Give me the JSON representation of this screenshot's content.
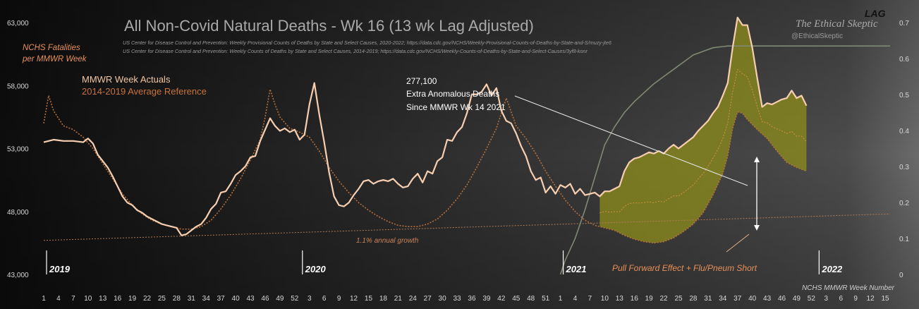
{
  "chart_data": {
    "type": "line",
    "title": "All Non-Covid Natural Deaths - Wk 16 (13 wk Lag Adjusted)",
    "sources": [
      "US Center for Disease Control and Prevention: Weekly  Provisional Counts of Deaths by State and Select Causes, 2020-2022; https://data.cdc.gov/NCHS/Weekly-Provisional-Counts-of-Deaths-by-State-and-S/muzy-jte6",
      "US Center for Disease Control and Prevention: Weekly  Counts of Deaths by State and Select Causes, 2014-2019; https://data.cdc.gov/NCHS/Weekly-Counts-of-Deaths-by-State-and-Select-Causes/3yf8-konr"
    ],
    "brand": "The Ethical Skeptic",
    "handle": "@EthicalSkeptic",
    "ylabel_lines": [
      "NCHS Fatalities",
      "per MMWR Week"
    ],
    "xlabel": "NCHS MMWR Week Number",
    "right_axis_title": "LAG",
    "legend": {
      "actual": "MMWR Week Actuals",
      "reference": "2014-2019  Average Reference"
    },
    "colors": {
      "actual": "#f7cfb0",
      "reference": "#b5703d",
      "fill": "#8a8a1e",
      "lag": "#7f8a74",
      "trend": "#b07a55",
      "title": "#a9a9a9",
      "legend_actual": "#f2c6a4",
      "legend_reference": "#c8743c",
      "annotation_orange": "#e8915a"
    },
    "ylim": [
      43000,
      63000
    ],
    "yticks": [
      43000,
      48000,
      53000,
      58000,
      63000
    ],
    "ytick_labels": [
      "43,000",
      "48,000",
      "53,000",
      "58,000",
      "63,000"
    ],
    "y2lim": [
      0,
      0.7
    ],
    "y2ticks": [
      0,
      0.1,
      0.2,
      0.3,
      0.4,
      0.5,
      0.6,
      0.7
    ],
    "y2tick_labels": [
      "0",
      "0.1",
      "0.2",
      "0.3",
      "0.4",
      "0.5",
      "0.6",
      "0.7"
    ],
    "x_week_count": 173,
    "xtick_labels": [
      "1",
      "4",
      "7",
      "10",
      "13",
      "16",
      "19",
      "22",
      "25",
      "28",
      "31",
      "34",
      "37",
      "40",
      "43",
      "46",
      "49",
      "52",
      "3",
      "6",
      "9",
      "12",
      "15",
      "18",
      "21",
      "24",
      "27",
      "30",
      "33",
      "36",
      "39",
      "42",
      "45",
      "48",
      "51",
      "1",
      "4",
      "7",
      "10",
      "13",
      "16",
      "19",
      "22",
      "25",
      "28",
      "31",
      "34",
      "37",
      "40",
      "43",
      "46",
      "49",
      "52",
      "3",
      "6",
      "9",
      "12",
      "15"
    ],
    "year_markers": [
      {
        "label": "2019",
        "index": 0
      },
      {
        "label": "2020",
        "index": 52
      },
      {
        "label": "2021",
        "index": 105
      },
      {
        "label": "2022",
        "index": 157
      }
    ],
    "actual_knots": [
      [
        0,
        53500
      ],
      [
        2,
        53700
      ],
      [
        4,
        53600
      ],
      [
        6,
        53600
      ],
      [
        8,
        53500
      ],
      [
        9,
        53800
      ],
      [
        10,
        53400
      ],
      [
        11,
        52500
      ],
      [
        12,
        52000
      ],
      [
        13,
        51500
      ],
      [
        14,
        50800
      ],
      [
        15,
        50000
      ],
      [
        16,
        49200
      ],
      [
        17,
        48700
      ],
      [
        18,
        48500
      ],
      [
        19,
        48100
      ],
      [
        20,
        47900
      ],
      [
        21,
        47600
      ],
      [
        22,
        47400
      ],
      [
        23,
        47200
      ],
      [
        24,
        47000
      ],
      [
        25,
        46900
      ],
      [
        26,
        46800
      ],
      [
        27,
        46700
      ],
      [
        28,
        46100
      ],
      [
        29,
        46200
      ],
      [
        30,
        46500
      ],
      [
        31,
        46800
      ],
      [
        32,
        47000
      ],
      [
        33,
        47500
      ],
      [
        34,
        48200
      ],
      [
        35,
        48600
      ],
      [
        36,
        49500
      ],
      [
        37,
        49600
      ],
      [
        38,
        50200
      ],
      [
        39,
        50900
      ],
      [
        40,
        51200
      ],
      [
        41,
        51600
      ],
      [
        42,
        52300
      ],
      [
        43,
        52400
      ],
      [
        44,
        53600
      ],
      [
        45,
        54500
      ],
      [
        46,
        55400
      ],
      [
        47,
        54800
      ],
      [
        48,
        54400
      ],
      [
        49,
        54600
      ],
      [
        50,
        54300
      ],
      [
        51,
        54500
      ],
      [
        52,
        53700
      ],
      [
        53,
        54100
      ],
      [
        54,
        56500
      ],
      [
        55,
        58200
      ],
      [
        56,
        55700
      ],
      [
        57,
        53500
      ],
      [
        58,
        51100
      ],
      [
        59,
        49200
      ],
      [
        60,
        48500
      ],
      [
        61,
        48400
      ],
      [
        62,
        48700
      ],
      [
        63,
        49300
      ],
      [
        64,
        49800
      ],
      [
        65,
        50400
      ],
      [
        66,
        50500
      ],
      [
        67,
        50200
      ],
      [
        68,
        50400
      ],
      [
        69,
        50500
      ],
      [
        70,
        50400
      ],
      [
        71,
        50600
      ],
      [
        72,
        50200
      ],
      [
        73,
        49900
      ],
      [
        74,
        50000
      ],
      [
        75,
        50600
      ],
      [
        76,
        51000
      ],
      [
        77,
        50300
      ],
      [
        78,
        51200
      ],
      [
        79,
        51000
      ],
      [
        80,
        52000
      ],
      [
        81,
        52300
      ],
      [
        82,
        53700
      ],
      [
        83,
        53600
      ],
      [
        84,
        54300
      ],
      [
        85,
        54700
      ],
      [
        86,
        55800
      ],
      [
        87,
        57300
      ],
      [
        88,
        57300
      ],
      [
        89,
        57500
      ],
      [
        90,
        58100
      ],
      [
        91,
        57200
      ],
      [
        92,
        57800
      ],
      [
        93,
        56000
      ],
      [
        94,
        55200
      ],
      [
        95,
        55000
      ],
      [
        96,
        54200
      ],
      [
        97,
        53200
      ],
      [
        98,
        52400
      ],
      [
        99,
        51200
      ],
      [
        100,
        50500
      ],
      [
        101,
        50700
      ],
      [
        102,
        49500
      ],
      [
        103,
        50000
      ],
      [
        104,
        49400
      ],
      [
        105,
        50100
      ],
      [
        106,
        49900
      ],
      [
        107,
        50200
      ],
      [
        108,
        49400
      ],
      [
        109,
        49800
      ],
      [
        110,
        49300
      ],
      [
        111,
        49400
      ],
      [
        112,
        49500
      ],
      [
        113,
        49200
      ],
      [
        114,
        49600
      ],
      [
        115,
        49600
      ],
      [
        116,
        49800
      ],
      [
        117,
        50000
      ],
      [
        118,
        51200
      ],
      [
        119,
        51900
      ],
      [
        120,
        52200
      ],
      [
        121,
        52300
      ],
      [
        122,
        52500
      ],
      [
        123,
        52700
      ],
      [
        124,
        52600
      ],
      [
        125,
        52800
      ],
      [
        126,
        52600
      ],
      [
        127,
        53000
      ],
      [
        128,
        53300
      ],
      [
        129,
        53000
      ],
      [
        130,
        53300
      ],
      [
        131,
        53600
      ],
      [
        132,
        53900
      ],
      [
        133,
        54400
      ],
      [
        134,
        54800
      ],
      [
        135,
        55200
      ],
      [
        136,
        55800
      ],
      [
        137,
        56300
      ],
      [
        138,
        57200
      ],
      [
        139,
        58200
      ],
      [
        140,
        61000
      ],
      [
        141,
        63400
      ],
      [
        142,
        62800
      ],
      [
        143,
        62800
      ],
      [
        144,
        61000
      ],
      [
        145,
        58600
      ],
      [
        146,
        56300
      ],
      [
        147,
        56600
      ],
      [
        148,
        56500
      ],
      [
        149,
        56700
      ],
      [
        150,
        56900
      ],
      [
        151,
        57000
      ],
      [
        152,
        57600
      ],
      [
        153,
        57000
      ],
      [
        154,
        57200
      ],
      [
        155,
        56400
      ]
    ],
    "reference_knots": [
      [
        0,
        55000
      ],
      [
        1,
        57200
      ],
      [
        2,
        56000
      ],
      [
        4,
        54800
      ],
      [
        6,
        54500
      ],
      [
        8,
        53900
      ],
      [
        10,
        53000
      ],
      [
        12,
        51800
      ],
      [
        14,
        50600
      ],
      [
        16,
        49400
      ],
      [
        18,
        48500
      ],
      [
        20,
        47800
      ],
      [
        22,
        47300
      ],
      [
        24,
        47000
      ],
      [
        26,
        46800
      ],
      [
        28,
        46600
      ],
      [
        30,
        46600
      ],
      [
        32,
        46800
      ],
      [
        34,
        47300
      ],
      [
        36,
        48200
      ],
      [
        38,
        49300
      ],
      [
        40,
        50600
      ],
      [
        42,
        52100
      ],
      [
        44,
        53700
      ],
      [
        45,
        55500
      ],
      [
        46,
        57700
      ],
      [
        47,
        56500
      ],
      [
        48,
        55500
      ],
      [
        50,
        54600
      ],
      [
        52,
        54300
      ],
      [
        54,
        53900
      ],
      [
        56,
        52800
      ],
      [
        58,
        51500
      ],
      [
        60,
        50400
      ],
      [
        62,
        49500
      ],
      [
        64,
        48700
      ],
      [
        66,
        48100
      ],
      [
        68,
        47600
      ],
      [
        70,
        47200
      ],
      [
        72,
        46900
      ],
      [
        74,
        46800
      ],
      [
        76,
        46800
      ],
      [
        78,
        47000
      ],
      [
        80,
        47400
      ],
      [
        82,
        48100
      ],
      [
        84,
        49000
      ],
      [
        86,
        50100
      ],
      [
        88,
        51500
      ],
      [
        90,
        53000
      ],
      [
        92,
        54600
      ],
      [
        93,
        55800
      ],
      [
        94,
        57000
      ],
      [
        95,
        55900
      ],
      [
        96,
        54800
      ],
      [
        98,
        53800
      ],
      [
        100,
        52600
      ],
      [
        102,
        51200
      ],
      [
        104,
        50000
      ],
      [
        106,
        48900
      ],
      [
        108,
        48000
      ],
      [
        110,
        47300
      ],
      [
        112,
        46900
      ],
      [
        114,
        46700
      ],
      [
        116,
        46500
      ],
      [
        118,
        46100
      ],
      [
        120,
        45800
      ],
      [
        122,
        45600
      ],
      [
        124,
        45500
      ],
      [
        126,
        45600
      ],
      [
        128,
        45900
      ],
      [
        130,
        46400
      ],
      [
        132,
        47000
      ],
      [
        134,
        47900
      ],
      [
        136,
        49300
      ],
      [
        138,
        51000
      ],
      [
        139,
        52400
      ],
      [
        140,
        54600
      ],
      [
        141,
        55900
      ],
      [
        142,
        55800
      ],
      [
        143,
        55300
      ],
      [
        145,
        54500
      ],
      [
        147,
        53800
      ],
      [
        149,
        52800
      ],
      [
        151,
        51900
      ],
      [
        153,
        51500
      ],
      [
        155,
        51200
      ]
    ],
    "lag_start_index": 105,
    "lag_knots": [
      [
        105,
        0
      ],
      [
        106,
        0.04
      ],
      [
        108,
        0.1
      ],
      [
        110,
        0.18
      ],
      [
        112,
        0.27
      ],
      [
        114,
        0.36
      ],
      [
        116,
        0.41
      ],
      [
        118,
        0.45
      ],
      [
        120,
        0.48
      ],
      [
        122,
        0.505
      ],
      [
        124,
        0.53
      ],
      [
        126,
        0.55
      ],
      [
        128,
        0.57
      ],
      [
        130,
        0.59
      ],
      [
        132,
        0.61
      ],
      [
        134,
        0.62
      ],
      [
        136,
        0.63
      ],
      [
        139,
        0.635
      ],
      [
        155,
        0.635
      ]
    ],
    "trend_line": [
      [
        0,
        45700
      ],
      [
        155,
        47600
      ]
    ],
    "annotations": {
      "extra_deaths_value": "277,100",
      "extra_deaths_line1": "Extra Anomalous Deaths",
      "extra_deaths_line2": "Since MMWR Wk 14 2021",
      "growth": "1.1% annual growth",
      "pull_forward": "Pull Forward Effect + Flu/Pneum Short"
    }
  }
}
